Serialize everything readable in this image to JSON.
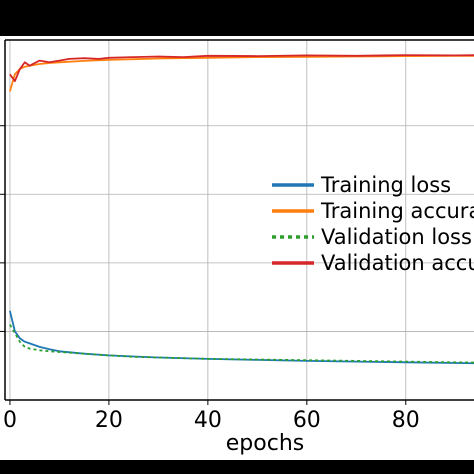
{
  "chart_data": {
    "type": "line",
    "title": "",
    "xlabel": "epochs",
    "ylabel": "",
    "xlim": [
      -1,
      95
    ],
    "ylim": [
      0,
      1.05
    ],
    "x_ticks": [
      0,
      20,
      40,
      60,
      80
    ],
    "x_tick_labels": [
      "0",
      "20",
      "40",
      "60",
      "80"
    ],
    "y_ticks": [
      0.2,
      0.4,
      0.6,
      0.8
    ],
    "grid": true,
    "legend_position": "center-right",
    "series": [
      {
        "name": "Training loss",
        "color": "#1f77b4",
        "style": "solid",
        "x": [
          0,
          1,
          2,
          3,
          4,
          6,
          8,
          10,
          15,
          20,
          25,
          30,
          40,
          50,
          60,
          70,
          80,
          90,
          95
        ],
        "y": [
          0.26,
          0.2,
          0.18,
          0.17,
          0.165,
          0.155,
          0.148,
          0.142,
          0.135,
          0.13,
          0.127,
          0.124,
          0.12,
          0.117,
          0.114,
          0.112,
          0.11,
          0.108,
          0.107
        ]
      },
      {
        "name": "Training accuracy",
        "color": "#ff7f0e",
        "style": "solid",
        "x": [
          0,
          1,
          2,
          3,
          4,
          6,
          8,
          10,
          15,
          20,
          25,
          30,
          40,
          50,
          60,
          70,
          80,
          90,
          95
        ],
        "y": [
          0.9,
          0.95,
          0.965,
          0.972,
          0.975,
          0.98,
          0.983,
          0.985,
          0.989,
          0.992,
          0.994,
          0.996,
          0.998,
          1.0,
          1.001,
          1.002,
          1.003,
          1.004,
          1.004
        ]
      },
      {
        "name": "Validation loss",
        "color": "#2ca02c",
        "style": "dotted",
        "x": [
          0,
          1,
          2,
          3,
          4,
          6,
          8,
          10,
          15,
          20,
          25,
          30,
          40,
          50,
          60,
          70,
          80,
          90,
          95
        ],
        "y": [
          0.22,
          0.195,
          0.17,
          0.155,
          0.15,
          0.145,
          0.142,
          0.14,
          0.135,
          0.13,
          0.126,
          0.124,
          0.12,
          0.118,
          0.116,
          0.114,
          0.112,
          0.11,
          0.109
        ]
      },
      {
        "name": "Validation accuracy",
        "color": "#d62728",
        "style": "solid",
        "x": [
          0,
          1,
          2,
          3,
          4,
          6,
          8,
          10,
          12,
          15,
          18,
          20,
          25,
          30,
          35,
          40,
          50,
          60,
          70,
          80,
          90,
          95
        ],
        "y": [
          0.95,
          0.93,
          0.965,
          0.985,
          0.975,
          0.99,
          0.985,
          0.99,
          0.995,
          0.997,
          0.995,
          0.998,
          1.0,
          1.002,
          1.0,
          1.004,
          1.003,
          1.005,
          1.004,
          1.006,
          1.005,
          1.006
        ]
      }
    ]
  }
}
